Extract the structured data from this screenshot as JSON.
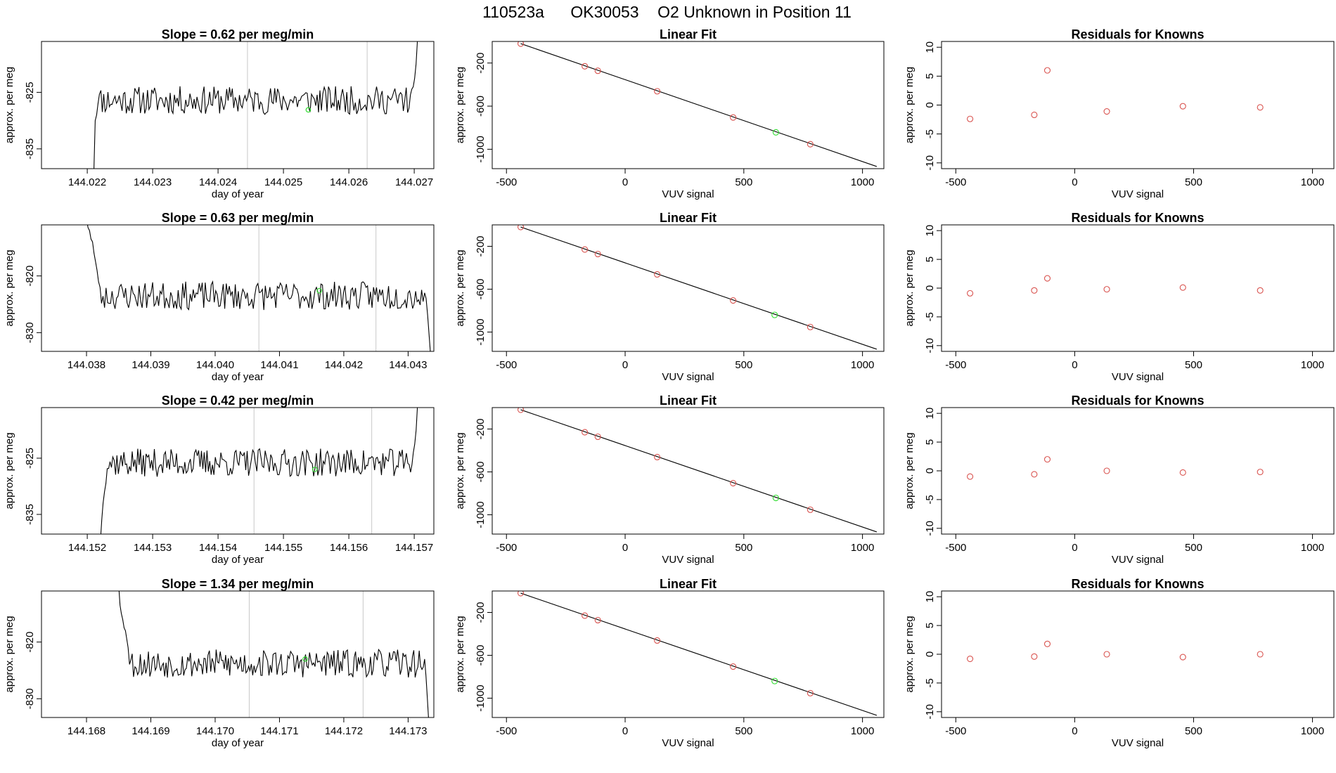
{
  "figure": {
    "title_parts": [
      "110523a",
      "OK30053",
      "O2 Unknown in Position  11"
    ],
    "colors": {
      "known": "#d9534f",
      "unknown": "#33dd33",
      "trace": "#000000",
      "marker_line": "#c8c8c8"
    }
  },
  "chart_data": [
    {
      "row": 1,
      "type": "line",
      "title": "Slope =  0.62  per meg/min",
      "xlabel": "day of year",
      "ylabel": "approx. per meg",
      "xlim": [
        144.0213,
        144.0273
      ],
      "ylim": [
        -838.5,
        -816.0
      ],
      "xticks": [
        "144.022",
        "144.023",
        "144.024",
        "144.025",
        "144.026",
        "144.027"
      ],
      "yticks": [
        "-825",
        "-835"
      ],
      "marker_lines_x": [
        144.02445,
        144.02628
      ],
      "unknown_point": {
        "x": 144.02538,
        "y": -828.1
      },
      "trace": {
        "x_start": 144.0221,
        "x_end": 144.02705,
        "base_level": -826.4,
        "seed": 11,
        "start_values": [
          -839.5,
          -830.0,
          -829.0,
          -827.0
        ],
        "end_values": [
          -824.0,
          -822.5,
          -820.0,
          -815.5
        ]
      }
    },
    {
      "row": 1,
      "type": "scatter",
      "title": "Linear Fit",
      "xlabel": "VUV signal",
      "ylabel": "approx. per meg",
      "xlim": [
        -560,
        1090
      ],
      "ylim": [
        -1180,
        0
      ],
      "xticks": [
        "-500",
        "0",
        "500",
        "1000"
      ],
      "yticks": [
        "-200",
        "-600",
        "-1000"
      ],
      "fit_line": {
        "x": [
          -440,
          1060
        ],
        "y": [
          -20,
          -1160
        ]
      },
      "known_points": [
        {
          "x": -440,
          "y": -20
        },
        {
          "x": -170,
          "y": -230
        },
        {
          "x": -115,
          "y": -272
        },
        {
          "x": 135,
          "y": -462
        },
        {
          "x": 455,
          "y": -705
        },
        {
          "x": 780,
          "y": -953
        }
      ],
      "unknown_point": {
        "x": 635,
        "y": -843
      }
    },
    {
      "row": 1,
      "type": "scatter",
      "title": "Residuals for Knowns",
      "xlabel": "VUV signal",
      "ylabel": "approx. per meg",
      "xlim": [
        -560,
        1090
      ],
      "ylim": [
        -11,
        11
      ],
      "xticks": [
        "-500",
        "0",
        "500",
        "1000"
      ],
      "yticks": [
        "10",
        "5",
        "0",
        "-5",
        "-10"
      ],
      "points": [
        {
          "x": -440,
          "y": -2.4
        },
        {
          "x": -170,
          "y": -1.7
        },
        {
          "x": -115,
          "y": 6.0
        },
        {
          "x": 135,
          "y": -1.1
        },
        {
          "x": 455,
          "y": -0.2
        },
        {
          "x": 780,
          "y": -0.4
        }
      ]
    },
    {
      "row": 2,
      "type": "line",
      "title": "Slope =  0.63  per meg/min",
      "xlabel": "day of year",
      "ylabel": "approx. per meg",
      "xlim": [
        144.0373,
        144.0434
      ],
      "ylim": [
        -833.3,
        -811.0
      ],
      "xticks": [
        "144.038",
        "144.039",
        "144.040",
        "144.041",
        "144.042",
        "144.043"
      ],
      "yticks": [
        "-820",
        "-830"
      ],
      "marker_lines_x": [
        144.04068,
        144.0425
      ],
      "unknown_point": {
        "x": 144.04162,
        "y": -822.6
      },
      "trace": {
        "x_start": 144.038,
        "x_end": 144.04335,
        "base_level": -823.5,
        "seed": 23,
        "start_values": [
          -810.0,
          -811.5,
          -812.0,
          -813.5,
          -814.0,
          -816.0,
          -817.5,
          -819.0,
          -821.0,
          -822.0
        ],
        "end_values": [
          -824.0,
          -827.0,
          -830.5,
          -834.0
        ]
      }
    },
    {
      "row": 2,
      "type": "scatter",
      "title": "Linear Fit",
      "xlabel": "VUV signal",
      "ylabel": "approx. per meg",
      "xlim": [
        -560,
        1090
      ],
      "ylim": [
        -1180,
        0
      ],
      "xticks": [
        "-500",
        "0",
        "500",
        "1000"
      ],
      "yticks": [
        "-200",
        "-600",
        "-1000"
      ],
      "fit_line": {
        "x": [
          -440,
          1060
        ],
        "y": [
          -20,
          -1160
        ]
      },
      "known_points": [
        {
          "x": -440,
          "y": -20
        },
        {
          "x": -170,
          "y": -230
        },
        {
          "x": -115,
          "y": -272
        },
        {
          "x": 135,
          "y": -462
        },
        {
          "x": 455,
          "y": -705
        },
        {
          "x": 780,
          "y": -953
        }
      ],
      "unknown_point": {
        "x": 630,
        "y": -840
      }
    },
    {
      "row": 2,
      "type": "scatter",
      "title": "Residuals for Knowns",
      "xlabel": "VUV signal",
      "ylabel": "approx. per meg",
      "xlim": [
        -560,
        1090
      ],
      "ylim": [
        -11,
        11
      ],
      "xticks": [
        "-500",
        "0",
        "500",
        "1000"
      ],
      "yticks": [
        "10",
        "5",
        "0",
        "-5",
        "-10"
      ],
      "points": [
        {
          "x": -440,
          "y": -0.9
        },
        {
          "x": -170,
          "y": -0.4
        },
        {
          "x": -115,
          "y": 1.7
        },
        {
          "x": 135,
          "y": -0.2
        },
        {
          "x": 455,
          "y": 0.1
        },
        {
          "x": 780,
          "y": -0.4
        }
      ]
    },
    {
      "row": 3,
      "type": "line",
      "title": "Slope =  0.42  per meg/min",
      "xlabel": "day of year",
      "ylabel": "approx. per meg",
      "xlim": [
        144.1513,
        144.1573
      ],
      "ylim": [
        -838.5,
        -816.0
      ],
      "xticks": [
        "144.152",
        "144.153",
        "144.154",
        "144.155",
        "144.156",
        "144.157"
      ],
      "yticks": [
        "-825",
        "-835"
      ],
      "marker_lines_x": [
        144.15455,
        144.15635
      ],
      "unknown_point": {
        "x": 144.15548,
        "y": -827.0
      },
      "trace": {
        "x_start": 144.1522,
        "x_end": 144.15705,
        "base_level": -825.8,
        "seed": 37,
        "start_values": [
          -840.0,
          -836.0,
          -833.0,
          -831.0,
          -829.5
        ],
        "end_values": [
          -824.0,
          -822.5,
          -820.0,
          -815.5
        ]
      }
    },
    {
      "row": 3,
      "type": "scatter",
      "title": "Linear Fit",
      "xlabel": "VUV signal",
      "ylabel": "approx. per meg",
      "xlim": [
        -560,
        1090
      ],
      "ylim": [
        -1180,
        0
      ],
      "xticks": [
        "-500",
        "0",
        "500",
        "1000"
      ],
      "yticks": [
        "-200",
        "-600",
        "-1000"
      ],
      "fit_line": {
        "x": [
          -440,
          1060
        ],
        "y": [
          -20,
          -1160
        ]
      },
      "known_points": [
        {
          "x": -440,
          "y": -20
        },
        {
          "x": -170,
          "y": -230
        },
        {
          "x": -115,
          "y": -272
        },
        {
          "x": 135,
          "y": -462
        },
        {
          "x": 455,
          "y": -705
        },
        {
          "x": 780,
          "y": -953
        }
      ],
      "unknown_point": {
        "x": 635,
        "y": -843
      }
    },
    {
      "row": 3,
      "type": "scatter",
      "title": "Residuals for Knowns",
      "xlabel": "VUV signal",
      "ylabel": "approx. per meg",
      "xlim": [
        -560,
        1090
      ],
      "ylim": [
        -11,
        11
      ],
      "xticks": [
        "-500",
        "0",
        "500",
        "1000"
      ],
      "yticks": [
        "10",
        "5",
        "0",
        "-5",
        "-10"
      ],
      "points": [
        {
          "x": -440,
          "y": -1.0
        },
        {
          "x": -170,
          "y": -0.6
        },
        {
          "x": -115,
          "y": 2.0
        },
        {
          "x": 135,
          "y": 0.0
        },
        {
          "x": 455,
          "y": -0.3
        },
        {
          "x": 780,
          "y": -0.2
        }
      ]
    },
    {
      "row": 4,
      "type": "line",
      "title": "Slope =  1.34  per meg/min",
      "xlabel": "day of year",
      "ylabel": "approx. per meg",
      "xlim": [
        144.1673,
        144.1734
      ],
      "ylim": [
        -833.3,
        -811.0
      ],
      "xticks": [
        "144.168",
        "144.169",
        "144.170",
        "144.171",
        "144.172",
        "144.173"
      ],
      "yticks": [
        "-820",
        "-830"
      ],
      "marker_lines_x": [
        144.17053,
        144.1723
      ],
      "unknown_point": {
        "x": 144.1714,
        "y": -823.0
      },
      "trace": {
        "x_start": 144.1685,
        "x_end": 144.17332,
        "base_level": -823.8,
        "seed": 53,
        "start_values": [
          -810.0,
          -813.5,
          -815.0,
          -816.0,
          -817.5,
          -818.0,
          -819.5,
          -821.0
        ],
        "end_values": [
          -823.0,
          -826.0,
          -830.0,
          -834.0
        ]
      }
    },
    {
      "row": 4,
      "type": "scatter",
      "title": "Linear Fit",
      "xlabel": "VUV signal",
      "ylabel": "approx. per meg",
      "xlim": [
        -560,
        1090
      ],
      "ylim": [
        -1180,
        0
      ],
      "xticks": [
        "-500",
        "0",
        "500",
        "1000"
      ],
      "yticks": [
        "-200",
        "-600",
        "-1000"
      ],
      "fit_line": {
        "x": [
          -440,
          1060
        ],
        "y": [
          -20,
          -1160
        ]
      },
      "known_points": [
        {
          "x": -440,
          "y": -20
        },
        {
          "x": -170,
          "y": -230
        },
        {
          "x": -115,
          "y": -272
        },
        {
          "x": 135,
          "y": -462
        },
        {
          "x": 455,
          "y": -705
        },
        {
          "x": 780,
          "y": -953
        }
      ],
      "unknown_point": {
        "x": 630,
        "y": -840
      }
    },
    {
      "row": 4,
      "type": "scatter",
      "title": "Residuals for Knowns",
      "xlabel": "VUV signal",
      "ylabel": "approx. per meg",
      "xlim": [
        -560,
        1090
      ],
      "ylim": [
        -11,
        11
      ],
      "xticks": [
        "-500",
        "0",
        "500",
        "1000"
      ],
      "yticks": [
        "10",
        "5",
        "0",
        "-5",
        "-10"
      ],
      "points": [
        {
          "x": -440,
          "y": -0.8
        },
        {
          "x": -170,
          "y": -0.4
        },
        {
          "x": -115,
          "y": 1.8
        },
        {
          "x": 135,
          "y": 0.0
        },
        {
          "x": 455,
          "y": -0.5
        },
        {
          "x": 780,
          "y": 0.0
        }
      ]
    }
  ]
}
